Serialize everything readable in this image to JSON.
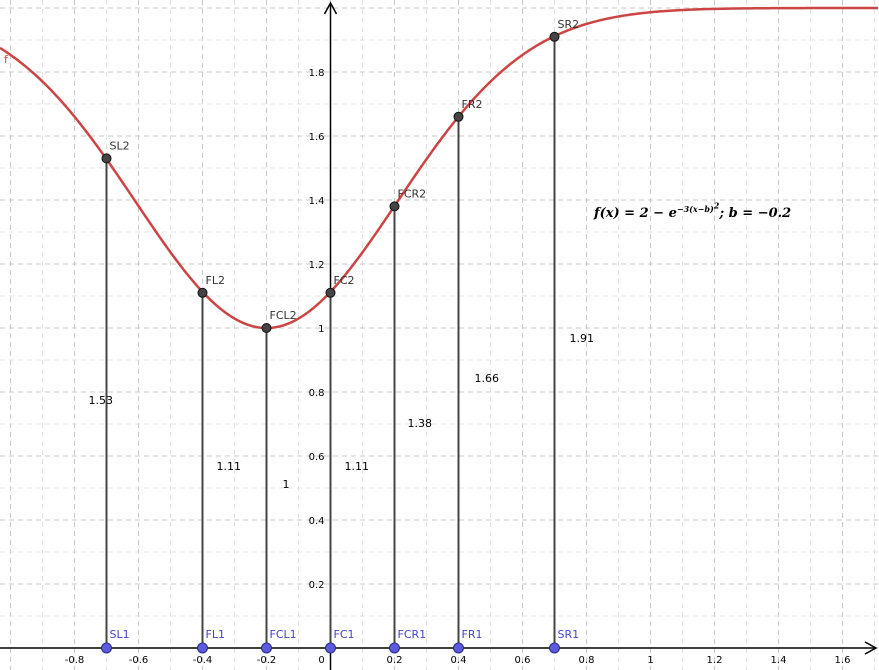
{
  "chart_data": {
    "type": "line",
    "title": "",
    "xlabel": "",
    "ylabel": "",
    "xlim": [
      -1.03,
      1.68
    ],
    "ylim": [
      -0.08,
      2.0
    ],
    "grid": true,
    "x_ticks": [
      "-0.8",
      "-0.6",
      "-0.4",
      "-0.2",
      "0",
      "0.2",
      "0.4",
      "0.6",
      "0.8",
      "1",
      "1.2",
      "1.4",
      "1.6"
    ],
    "y_ticks": [
      "0.2",
      "0.4",
      "0.6",
      "0.8",
      "1",
      "1.2",
      "1.4",
      "1.6",
      "1.8"
    ],
    "origin_label": "0",
    "series": [
      {
        "name": "f",
        "color": "#cc4444",
        "b": -0.2,
        "k": 3
      }
    ],
    "points": [
      {
        "base": "SL1",
        "top": "SL2",
        "x": -0.7,
        "y": 1.53,
        "value_label": "1.53"
      },
      {
        "base": "FL1",
        "top": "FL2",
        "x": -0.4,
        "y": 1.11,
        "value_label": "1.11"
      },
      {
        "base": "FCL1",
        "top": "FCL2",
        "x": -0.2,
        "y": 1.0,
        "value_label": "1"
      },
      {
        "base": "FC1",
        "top": "FC2",
        "x": 0.0,
        "y": 1.11,
        "value_label": "1.11"
      },
      {
        "base": "FCR1",
        "top": "FCR2",
        "x": 0.2,
        "y": 1.38,
        "value_label": "1.38"
      },
      {
        "base": "FR1",
        "top": "FR2",
        "x": 0.4,
        "y": 1.66,
        "value_label": "1.66"
      },
      {
        "base": "SR1",
        "top": "SR2",
        "x": 0.7,
        "y": 1.91,
        "value_label": "1.91"
      }
    ],
    "annotation": {
      "lhs": "f(x) = 2 − e",
      "exponent": "−3(x−b)",
      "exponent_power": "2",
      "rhs": "; b = −0.2"
    }
  }
}
